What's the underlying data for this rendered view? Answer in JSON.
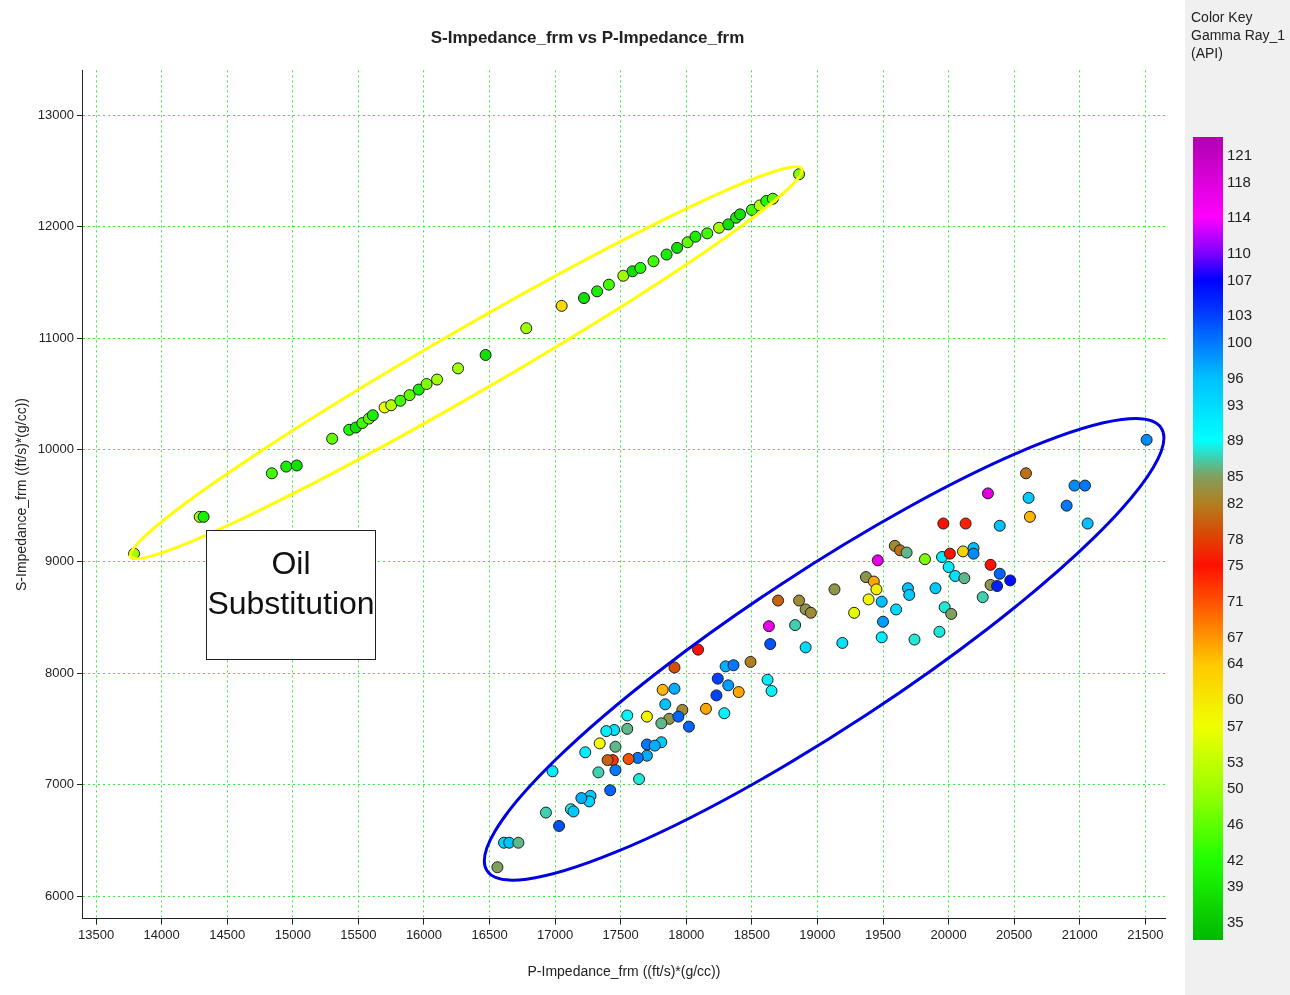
{
  "chart_data": {
    "type": "scatter",
    "title": "S-Impedance_frm vs P-Impedance_frm",
    "xlabel": "P-Impedance_frm ((ft/s)*(g/cc))",
    "ylabel": "S-Impedance_frm ((ft/s)*(g/cc))",
    "clabel": "Color Key Gamma Ray_1 (API)",
    "annotations": [
      "Oil Substitution"
    ],
    "xlim": [
      13400,
      21650
    ],
    "xticks": [
      13500,
      14000,
      14500,
      15000,
      15500,
      16000,
      16500,
      17000,
      17500,
      18000,
      18500,
      19000,
      19500,
      20000,
      20500,
      21000,
      21500
    ],
    "ylim": [
      5800,
      13400
    ],
    "yticks": [
      6000,
      7000,
      8000,
      9000,
      10000,
      11000,
      12000,
      13000
    ],
    "clim": [
      33,
      123
    ],
    "cticks": [
      35,
      39,
      42,
      46,
      50,
      53,
      57,
      60,
      64,
      67,
      71,
      75,
      78,
      82,
      85,
      89,
      93,
      96,
      100,
      103,
      107,
      110,
      114,
      118,
      121
    ],
    "grid": true,
    "legend": false,
    "marker": "circle",
    "series": [
      {
        "x": [
          13790,
          14290,
          14320,
          14840,
          14950,
          15030,
          15300,
          15430,
          15480,
          15530,
          15580,
          15610,
          15700,
          15750,
          15820,
          15890,
          15960,
          16020,
          16100,
          16260,
          16470,
          16780,
          17050,
          17220,
          17320,
          17410,
          17520,
          17590,
          17650,
          17750,
          17850,
          17930,
          18010,
          18070,
          18160,
          18250,
          18320,
          18380,
          18410,
          18500,
          18560,
          18610,
          18660,
          18860
        ],
        "values": [
          9070,
          9400,
          9400,
          9790,
          9850,
          9860,
          10100,
          10180,
          10200,
          10240,
          10280,
          10310,
          10380,
          10400,
          10440,
          10490,
          10540,
          10590,
          10630,
          10730,
          10850,
          11090,
          11290,
          11360,
          11420,
          11480,
          11560,
          11600,
          11630,
          11690,
          11750,
          11810,
          11860,
          11910,
          11940,
          11990,
          12020,
          12080,
          12110,
          12150,
          12190,
          12230,
          12250,
          12470
        ],
        "colors": [
          "#a0ff00",
          "#a0ff00",
          "#19ef00",
          "#3fff00",
          "#19ef00",
          "#12e000",
          "#5fff00",
          "#20ff00",
          "#12e000",
          "#3fff00",
          "#5fff00",
          "#19ef00",
          "#f0ff00",
          "#b6ff00",
          "#3fff00",
          "#5fff00",
          "#19ef00",
          "#7fff00",
          "#a0ff00",
          "#a0ff00",
          "#12e000",
          "#a0ff00",
          "#fbd800",
          "#12e000",
          "#19ef00",
          "#3fff00",
          "#a0ff00",
          "#12e000",
          "#20ff00",
          "#3fff00",
          "#19ef00",
          "#12e000",
          "#5fff00",
          "#19ef00",
          "#3fff00",
          "#a0ff00",
          "#12e000",
          "#19ef00",
          "#12e000",
          "#3fff00",
          "#b6ff00",
          "#20ff00",
          "#5fff00",
          "#7fff00"
        ]
      },
      {
        "x": [
          18630,
          18830,
          18640,
          18090,
          18490,
          17910,
          18300,
          18360,
          18240,
          18320,
          18400,
          17820,
          17910,
          18620,
          18650,
          18230,
          17840,
          18150,
          18290,
          17970,
          17870,
          17810,
          17700,
          17940,
          18020,
          17550,
          17550,
          17450,
          17390,
          17810,
          17700,
          17760,
          17340,
          17460,
          17230,
          17700,
          17630,
          17560,
          17440,
          17400,
          17460,
          17330,
          17640,
          16980,
          17420,
          17270,
          17260,
          17200,
          17120,
          17140,
          16930,
          17030,
          16610,
          16650,
          16720,
          16560,
          19590,
          19630,
          19680,
          19460,
          19370,
          19430,
          19450,
          19390,
          19130,
          19490,
          19600,
          19280,
          18700,
          18860,
          18910,
          18950,
          19500,
          19490,
          18910,
          19190,
          21510,
          20590,
          20960,
          21040,
          20300,
          20610,
          20900,
          20620,
          21060,
          19960,
          20130,
          20390,
          19820,
          19950,
          20010,
          20110,
          20190,
          20190,
          20000,
          20320,
          20050,
          20120,
          20390,
          20470,
          20320,
          20370,
          20260,
          19690,
          19700,
          19900,
          19970,
          20020,
          19740,
          19930
        ],
        "values": [
          8420,
          8430,
          8260,
          8210,
          8100,
          8050,
          8060,
          8070,
          7950,
          7890,
          7830,
          7850,
          7860,
          7940,
          7840,
          7800,
          7720,
          7680,
          7640,
          7670,
          7590,
          7550,
          7610,
          7610,
          7520,
          7620,
          7500,
          7490,
          7480,
          7380,
          7360,
          7350,
          7370,
          7340,
          7290,
          7260,
          7240,
          7230,
          7220,
          7220,
          7130,
          7110,
          7050,
          7120,
          6950,
          6900,
          6850,
          6880,
          6780,
          6760,
          6750,
          6630,
          6480,
          6480,
          6480,
          6260,
          9140,
          9100,
          9080,
          9010,
          8860,
          8820,
          8750,
          8660,
          8750,
          8640,
          8570,
          8540,
          8650,
          8650,
          8570,
          8540,
          8460,
          8320,
          8230,
          8270,
          10090,
          9790,
          9680,
          9680,
          9610,
          9570,
          9500,
          9400,
          9340,
          9340,
          9340,
          9320,
          9020,
          9040,
          9070,
          9090,
          9120,
          9070,
          8950,
          8970,
          8870,
          8850,
          8890,
          8830,
          8790,
          8780,
          8680,
          8760,
          8700,
          8760,
          8590,
          8530,
          8300,
          8370
        ],
        "colors": [
          "#ee00ee",
          "#40d0b0",
          "#0052ff",
          "#ff1000",
          "#b08020",
          "#d45008",
          "#00aeff",
          "#0078ff",
          "#0040ff",
          "#009cff",
          "#ffa500",
          "#ffb600",
          "#00aeff",
          "#00edff",
          "#00f6ff",
          "#0040ff",
          "#00c0ff",
          "#ffa500",
          "#00f6ff",
          "#9f8b36",
          "#8f964c",
          "#60b888",
          "#f2f700",
          "#0064ff",
          "#0064ff",
          "#00f6ff",
          "#60b888",
          "#00e3ff",
          "#00edff",
          "#00c9ff",
          "#0078ff",
          "#00aeff",
          "#f0ff00",
          "#60b888",
          "#00edff",
          "#00aeff",
          "#0078ff",
          "#ff5000",
          "#ff3100",
          "#c86010",
          "#0078ff",
          "#40d0b0",
          "#20e8d8",
          "#00edff",
          "#0064ff",
          "#00c9ff",
          "#00d2ff",
          "#00aeff",
          "#20e8d8",
          "#00c9ff",
          "#40d0b0",
          "#0052ff",
          "#00d2ff",
          "#00c0ff",
          "#60b888",
          "#80a060",
          "#9f8b36",
          "#bc7018",
          "#60b888",
          "#e500e5",
          "#8f964c",
          "#ffa500",
          "#f4ef00",
          "#f2f700",
          "#8f964c",
          "#00c0ff",
          "#00daff",
          "#e5ff00",
          "#c86010",
          "#9f8b36",
          "#8f964c",
          "#9f8b36",
          "#009cff",
          "#00edff",
          "#00daff",
          "#00e3ff",
          "#008aff",
          "#bc7018",
          "#008aff",
          "#0078ff",
          "#dc00dc",
          "#00c9ff",
          "#0078ff",
          "#ffb600",
          "#00c0ff",
          "#ff1000",
          "#ff1f00",
          "#00c0ff",
          "#7fff00",
          "#00edff",
          "#ff1000",
          "#fdd000",
          "#00c0ff",
          "#008aff",
          "#00edff",
          "#ff1000",
          "#00e3ff",
          "#60b888",
          "#0064ff",
          "#0010ff",
          "#8f964c",
          "#0020ff",
          "#40d0b0",
          "#00c0ff",
          "#00c9ff",
          "#00c9ff",
          "#20e8d8",
          "#80a060",
          "#20e8d8",
          "#20e8d8"
        ]
      }
    ]
  }
}
